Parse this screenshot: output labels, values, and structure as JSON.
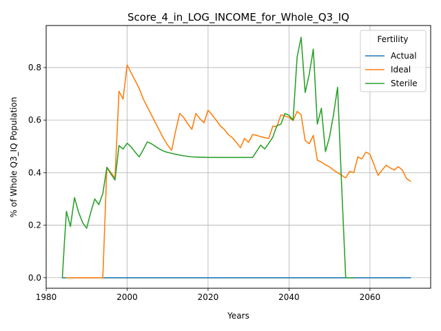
{
  "chart_data": {
    "type": "line",
    "title": "Score_4_in_LOG_INCOME_for_Whole_Q3_IQ",
    "xlabel": "Years",
    "ylabel": "% of Whole Q3_IQ Population",
    "xlim": [
      1980,
      2075
    ],
    "ylim": [
      -0.04,
      0.96
    ],
    "x_ticks": [
      1980,
      2000,
      2020,
      2040,
      2060
    ],
    "x_tick_labels": [
      "1980",
      "2000",
      "2020",
      "2040",
      "2060"
    ],
    "y_ticks": [
      0.0,
      0.2,
      0.4,
      0.6,
      0.8
    ],
    "y_tick_labels": [
      "0.0",
      "0.2",
      "0.4",
      "0.6",
      "0.8"
    ],
    "grid": true,
    "legend": {
      "title": "Fertility",
      "placement": "top-right"
    },
    "series": [
      {
        "name": "Actual",
        "color": "#1f77b4",
        "points": [
          [
            1984,
            0.0
          ],
          [
            2070,
            0.0
          ]
        ]
      },
      {
        "name": "Ideal",
        "color": "#ff7f0e",
        "points": [
          [
            1985,
            0.0
          ],
          [
            1994,
            0.0
          ],
          [
            1995,
            0.42
          ],
          [
            1997,
            0.38
          ],
          [
            1998,
            0.71
          ],
          [
            1999,
            0.68
          ],
          [
            2000,
            0.81
          ],
          [
            2001,
            0.78
          ],
          [
            2002,
            0.75
          ],
          [
            2003,
            0.72
          ],
          [
            2004,
            0.68
          ],
          [
            2005,
            0.65
          ],
          [
            2006,
            0.62
          ],
          [
            2007,
            0.59
          ],
          [
            2008,
            0.56
          ],
          [
            2009,
            0.53
          ],
          [
            2010,
            0.505
          ],
          [
            2011,
            0.485
          ],
          [
            2012,
            0.56
          ],
          [
            2013,
            0.625
          ],
          [
            2014,
            0.61
          ],
          [
            2015,
            0.585
          ],
          [
            2016,
            0.565
          ],
          [
            2017,
            0.625
          ],
          [
            2018,
            0.605
          ],
          [
            2019,
            0.59
          ],
          [
            2020,
            0.638
          ],
          [
            2021,
            0.62
          ],
          [
            2022,
            0.6
          ],
          [
            2023,
            0.578
          ],
          [
            2024,
            0.565
          ],
          [
            2025,
            0.545
          ],
          [
            2026,
            0.533
          ],
          [
            2027,
            0.515
          ],
          [
            2028,
            0.495
          ],
          [
            2029,
            0.53
          ],
          [
            2030,
            0.515
          ],
          [
            2031,
            0.545
          ],
          [
            2032,
            0.542
          ],
          [
            2033,
            0.537
          ],
          [
            2034,
            0.533
          ],
          [
            2035,
            0.53
          ],
          [
            2036,
            0.577
          ],
          [
            2037,
            0.576
          ],
          [
            2038,
            0.62
          ],
          [
            2039,
            0.615
          ],
          [
            2040,
            0.61
          ],
          [
            2041,
            0.598
          ],
          [
            2042,
            0.633
          ],
          [
            2043,
            0.62
          ],
          [
            2044,
            0.522
          ],
          [
            2045,
            0.51
          ],
          [
            2046,
            0.542
          ],
          [
            2047,
            0.448
          ],
          [
            2048,
            0.44
          ],
          [
            2049,
            0.43
          ],
          [
            2050,
            0.422
          ],
          [
            2051,
            0.41
          ],
          [
            2052,
            0.4
          ],
          [
            2053,
            0.39
          ],
          [
            2054,
            0.38
          ],
          [
            2055,
            0.405
          ],
          [
            2056,
            0.4
          ],
          [
            2057,
            0.46
          ],
          [
            2058,
            0.452
          ],
          [
            2059,
            0.478
          ],
          [
            2060,
            0.47
          ],
          [
            2061,
            0.43
          ],
          [
            2062,
            0.39
          ],
          [
            2063,
            0.41
          ],
          [
            2064,
            0.428
          ],
          [
            2065,
            0.418
          ],
          [
            2066,
            0.41
          ],
          [
            2067,
            0.423
          ],
          [
            2068,
            0.41
          ],
          [
            2069,
            0.378
          ],
          [
            2070,
            0.367
          ]
        ]
      },
      {
        "name": "Sterile",
        "color": "#2ca02c",
        "points": [
          [
            1984,
            0.0
          ],
          [
            1984.5,
            0.13
          ],
          [
            1985,
            0.253
          ],
          [
            1986,
            0.195
          ],
          [
            1987,
            0.305
          ],
          [
            1988,
            0.25
          ],
          [
            1989,
            0.21
          ],
          [
            1990,
            0.188
          ],
          [
            1991,
            0.248
          ],
          [
            1992,
            0.3
          ],
          [
            1993,
            0.278
          ],
          [
            1994,
            0.32
          ],
          [
            1995,
            0.42
          ],
          [
            1996,
            0.395
          ],
          [
            1997,
            0.372
          ],
          [
            1998,
            0.503
          ],
          [
            1999,
            0.49
          ],
          [
            2000,
            0.512
          ],
          [
            2001,
            0.498
          ],
          [
            2002,
            0.478
          ],
          [
            2003,
            0.46
          ],
          [
            2004,
            0.488
          ],
          [
            2005,
            0.517
          ],
          [
            2006,
            0.51
          ],
          [
            2007,
            0.5
          ],
          [
            2008,
            0.49
          ],
          [
            2009,
            0.482
          ],
          [
            2010,
            0.477
          ],
          [
            2012,
            0.47
          ],
          [
            2014,
            0.464
          ],
          [
            2016,
            0.46
          ],
          [
            2018,
            0.459
          ],
          [
            2020,
            0.458
          ],
          [
            2025,
            0.458
          ],
          [
            2031,
            0.458
          ],
          [
            2033,
            0.505
          ],
          [
            2034,
            0.49
          ],
          [
            2035,
            0.512
          ],
          [
            2036,
            0.535
          ],
          [
            2037,
            0.578
          ],
          [
            2038,
            0.585
          ],
          [
            2039,
            0.625
          ],
          [
            2040,
            0.618
          ],
          [
            2041,
            0.6
          ],
          [
            2042,
            0.84
          ],
          [
            2043,
            0.915
          ],
          [
            2044,
            0.705
          ],
          [
            2045,
            0.775
          ],
          [
            2046,
            0.87
          ],
          [
            2047,
            0.585
          ],
          [
            2048,
            0.645
          ],
          [
            2049,
            0.48
          ],
          [
            2050,
            0.535
          ],
          [
            2051,
            0.62
          ],
          [
            2052,
            0.725
          ],
          [
            2053,
            0.35
          ],
          [
            2054,
            0.0
          ],
          [
            2056,
            0.0
          ]
        ]
      }
    ]
  }
}
